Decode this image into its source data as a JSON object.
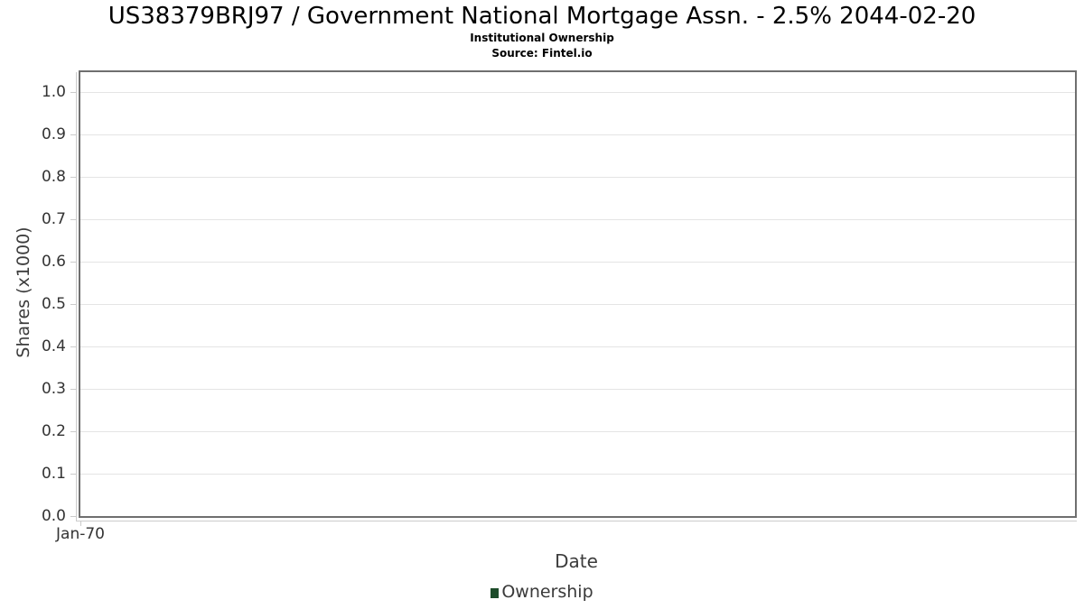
{
  "chart_data": {
    "type": "line",
    "title": "US38379BRJ97 / Government National Mortgage Assn. - 2.5% 2044-02-20",
    "subtitle": "Institutional Ownership",
    "source": "Source: Fintel.io",
    "xlabel": "Date",
    "ylabel": "Shares (x1000)",
    "x_tick_labels": [
      "Jan-70"
    ],
    "y_tick_labels": [
      "0.0",
      "0.1",
      "0.2",
      "0.3",
      "0.4",
      "0.5",
      "0.6",
      "0.7",
      "0.8",
      "0.9",
      "1.0"
    ],
    "y_tick_values": [
      0.0,
      0.1,
      0.2,
      0.3,
      0.4,
      0.5,
      0.6,
      0.7,
      0.8,
      0.9,
      1.0
    ],
    "ylim": [
      0,
      1.047
    ],
    "grid": "horizontal-only",
    "legend_position": "bottom-center",
    "legend": [
      {
        "label": "Ownership",
        "color": "#1d4c2a"
      }
    ],
    "series": [
      {
        "name": "Ownership",
        "points": []
      }
    ],
    "colors": {
      "plot_border": "#6f6f6f",
      "gridline": "#e4e4e4",
      "axis_line": "#cbcbcb",
      "tick_label": "#333333",
      "axis_title": "#3c3c3c",
      "title_text": "#000000",
      "series_accent": "#1d4c2a"
    }
  }
}
